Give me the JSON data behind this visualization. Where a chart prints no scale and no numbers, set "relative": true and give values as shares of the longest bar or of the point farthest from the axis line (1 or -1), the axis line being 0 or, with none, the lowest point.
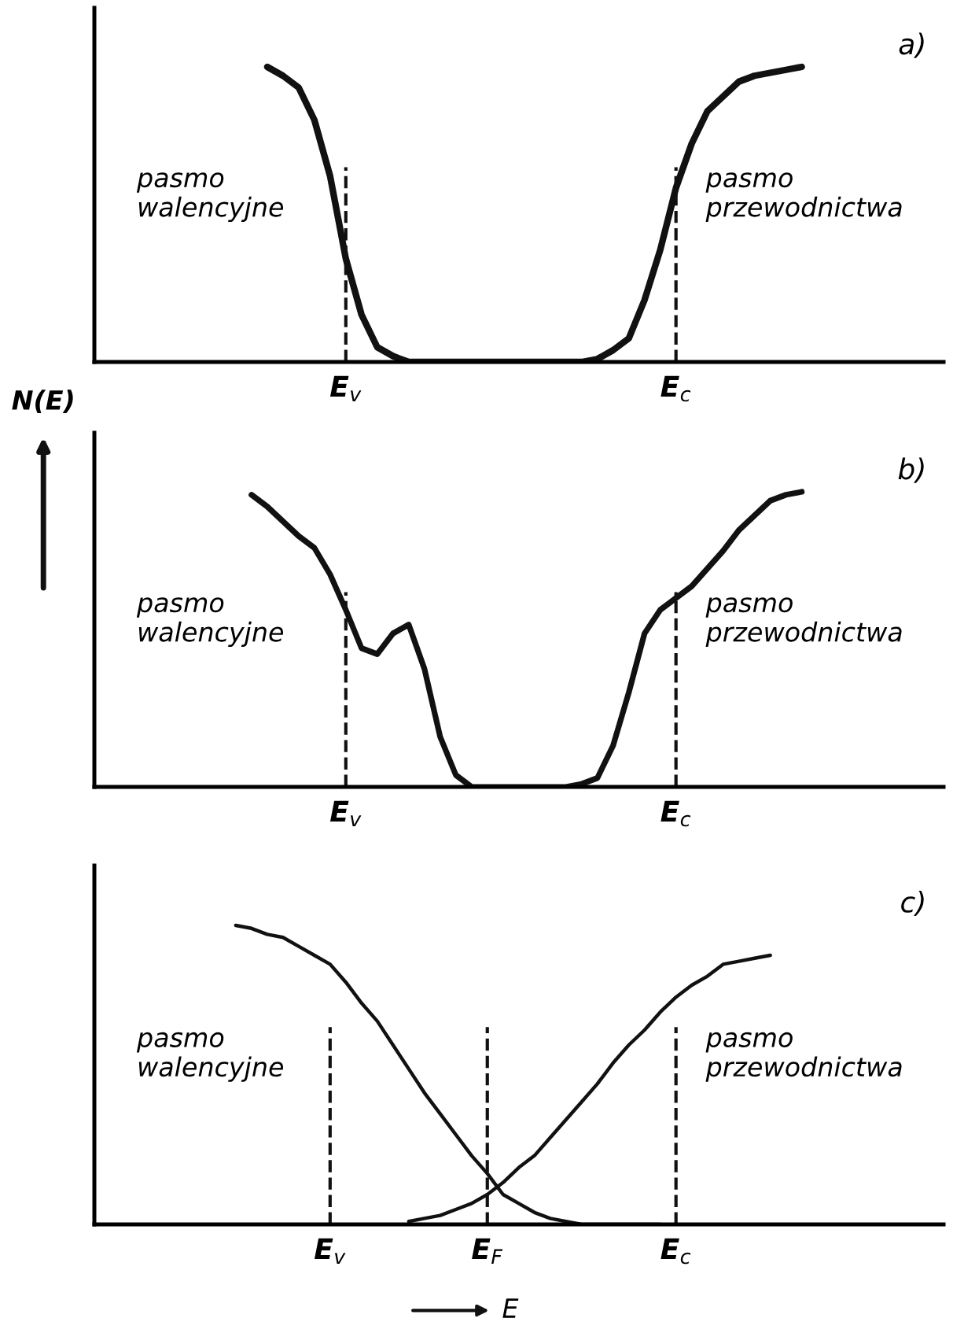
{
  "chart_data": [
    {
      "type": "line",
      "relative": true,
      "tick_labels": "x",
      "categories": [
        null,
        null,
        null,
        null,
        null,
        null,
        null,
        null,
        "E$_{v}$",
        null,
        null,
        null,
        null,
        null,
        null,
        null,
        null,
        null,
        null,
        null,
        null,
        null,
        null,
        null,
        null,
        null,
        null,
        null,
        null,
        "E$_{c}$",
        null,
        null,
        null,
        null,
        null,
        null,
        null,
        null,
        null
      ],
      "ref_lines": [
        {
          "axis": "x",
          "value": "E$_{v}$",
          "line_style": "dashed"
        },
        {
          "axis": "x",
          "value": "E$_{c}$",
          "line_style": "dashed"
        }
      ],
      "annotations": [
        "pasmo\nwalencyjne",
        "pasmo\nprzewodnictwa",
        "a)"
      ],
      "series": [
        {
          "color": "#111111",
          "values": [
            null,
            null,
            null,
            1.0,
            0.97,
            0.93,
            0.82,
            0.63,
            0.35,
            0.16,
            0.05,
            0.02,
            0,
            0,
            0,
            0,
            0,
            0,
            0,
            0,
            0,
            0,
            0,
            0,
            0.01,
            0.04,
            0.08,
            0.21,
            0.38,
            0.59,
            0.74,
            0.85,
            0.9,
            0.95,
            0.97,
            0.98,
            0.99,
            1.0,
            null
          ]
        }
      ]
    },
    {
      "type": "line",
      "ylabel": "N(E)",
      "relative": true,
      "tick_labels": "x",
      "categories": [
        null,
        null,
        null,
        null,
        null,
        null,
        null,
        null,
        "E$_{v}$",
        null,
        null,
        null,
        null,
        null,
        null,
        null,
        null,
        null,
        null,
        null,
        null,
        null,
        null,
        null,
        null,
        null,
        null,
        null,
        null,
        "E$_{c}$",
        null,
        null,
        null,
        null,
        null,
        null,
        null,
        null,
        null
      ],
      "ref_lines": [
        {
          "axis": "x",
          "value": "E$_{v}$",
          "line_style": "dashed"
        },
        {
          "axis": "x",
          "value": "E$_{c}$",
          "line_style": "dashed"
        }
      ],
      "annotations": [
        "pasmo\nwalencyjne",
        "pasmo\nprzewodnictwa",
        "b)"
      ],
      "series": [
        {
          "color": "#111111",
          "values": [
            null,
            null,
            0.99,
            0.95,
            0.9,
            0.85,
            0.81,
            0.72,
            0.6,
            0.47,
            0.45,
            0.52,
            0.55,
            0.4,
            0.17,
            0.04,
            0,
            0,
            0,
            0,
            0,
            0,
            0,
            0.01,
            0.03,
            0.14,
            0.32,
            0.52,
            0.6,
            0.64,
            0.68,
            0.74,
            0.8,
            0.87,
            0.92,
            0.97,
            0.99,
            1.0,
            null
          ]
        }
      ]
    },
    {
      "type": "line",
      "xlabel": "E",
      "relative": true,
      "tick_labels": "x",
      "categories": [
        null,
        null,
        null,
        null,
        null,
        null,
        null,
        "E$_{v}$",
        null,
        null,
        null,
        null,
        null,
        null,
        null,
        null,
        null,
        "E$_{F}$",
        null,
        null,
        null,
        null,
        null,
        null,
        null,
        null,
        null,
        null,
        null,
        "E$_{c}$",
        null,
        null,
        null,
        null,
        null,
        null,
        null,
        null,
        null
      ],
      "ref_lines": [
        {
          "axis": "x",
          "value": "E$_{v}$",
          "line_style": "dashed"
        },
        {
          "axis": "x",
          "value": "E$_{F}$",
          "line_style": "dashed"
        },
        {
          "axis": "x",
          "value": "E$_{c}$",
          "line_style": "dashed"
        }
      ],
      "annotations": [
        "pasmo\nwalencyjne",
        "pasmo\nprzewodnictwa",
        "c)"
      ],
      "series": [
        {
          "color": "#111111",
          "values": [
            null,
            1.0,
            0.99,
            0.97,
            0.96,
            0.93,
            0.9,
            0.87,
            0.81,
            0.74,
            0.68,
            0.6,
            0.52,
            0.44,
            0.37,
            0.3,
            0.23,
            0.17,
            0.1,
            0.07,
            0.04,
            0.02,
            0.01,
            0,
            0,
            0,
            0,
            0,
            0,
            null,
            null,
            null,
            null,
            null,
            null,
            null,
            null,
            null,
            null
          ]
        },
        {
          "color": "#111111",
          "values": [
            null,
            null,
            null,
            null,
            null,
            null,
            null,
            null,
            null,
            null,
            null,
            null,
            0.01,
            0.02,
            0.03,
            0.05,
            0.07,
            0.1,
            0.14,
            0.19,
            0.23,
            0.29,
            0.35,
            0.41,
            0.47,
            0.54,
            0.6,
            0.65,
            0.71,
            0.76,
            0.8,
            0.83,
            0.87,
            0.88,
            0.89,
            0.9,
            null,
            null,
            null
          ]
        }
      ]
    }
  ]
}
